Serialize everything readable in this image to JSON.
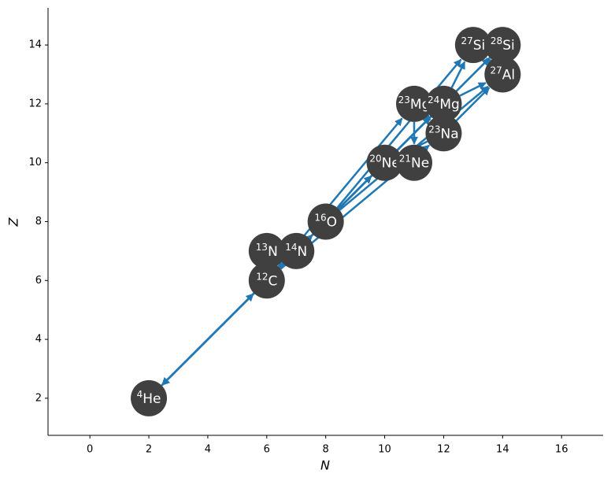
{
  "chart_data": {
    "type": "network",
    "x_label": "N",
    "y_label": "Z",
    "xlim": [
      -1.42,
      17.41
    ],
    "ylim": [
      0.74,
      15.26
    ],
    "xticks": [
      0,
      2,
      4,
      6,
      8,
      10,
      12,
      14,
      16
    ],
    "yticks": [
      2,
      4,
      6,
      8,
      10,
      12,
      14
    ],
    "node_color": "#404040",
    "edge_color": "#1f77b4",
    "nodes": [
      {
        "mass": "4",
        "symbol": "He",
        "N": 2,
        "Z": 2
      },
      {
        "mass": "12",
        "symbol": "C",
        "N": 6,
        "Z": 6
      },
      {
        "mass": "13",
        "symbol": "N",
        "N": 6,
        "Z": 7
      },
      {
        "mass": "14",
        "symbol": "N",
        "N": 7,
        "Z": 7
      },
      {
        "mass": "16",
        "symbol": "O",
        "N": 8,
        "Z": 8
      },
      {
        "mass": "20",
        "symbol": "Ne",
        "N": 10,
        "Z": 10
      },
      {
        "mass": "21",
        "symbol": "Ne",
        "N": 11,
        "Z": 10
      },
      {
        "mass": "23",
        "symbol": "Na",
        "N": 12,
        "Z": 11
      },
      {
        "mass": "23",
        "symbol": "Mg",
        "N": 11,
        "Z": 12
      },
      {
        "mass": "24",
        "symbol": "Mg",
        "N": 12,
        "Z": 12
      },
      {
        "mass": "27",
        "symbol": "Al",
        "N": 14,
        "Z": 13
      },
      {
        "mass": "27",
        "symbol": "Si",
        "N": 13,
        "Z": 14
      },
      {
        "mass": "28",
        "symbol": "Si",
        "N": 14,
        "Z": 14
      }
    ],
    "edges": [
      [
        0,
        1
      ],
      [
        1,
        0
      ],
      [
        1,
        2
      ],
      [
        2,
        3
      ],
      [
        3,
        4
      ],
      [
        1,
        4
      ],
      [
        4,
        0
      ],
      [
        1,
        5
      ],
      [
        1,
        7
      ],
      [
        1,
        8
      ],
      [
        4,
        9
      ],
      [
        4,
        10
      ],
      [
        4,
        11
      ],
      [
        4,
        12
      ],
      [
        5,
        0
      ],
      [
        5,
        9
      ],
      [
        6,
        5
      ],
      [
        7,
        5
      ],
      [
        7,
        9
      ],
      [
        8,
        7
      ],
      [
        9,
        10
      ],
      [
        10,
        12
      ],
      [
        11,
        12
      ],
      [
        10,
        11
      ],
      [
        8,
        9
      ],
      [
        12,
        0
      ],
      [
        4,
        5
      ],
      [
        9,
        11
      ],
      [
        7,
        10
      ],
      [
        8,
        6
      ]
    ]
  }
}
